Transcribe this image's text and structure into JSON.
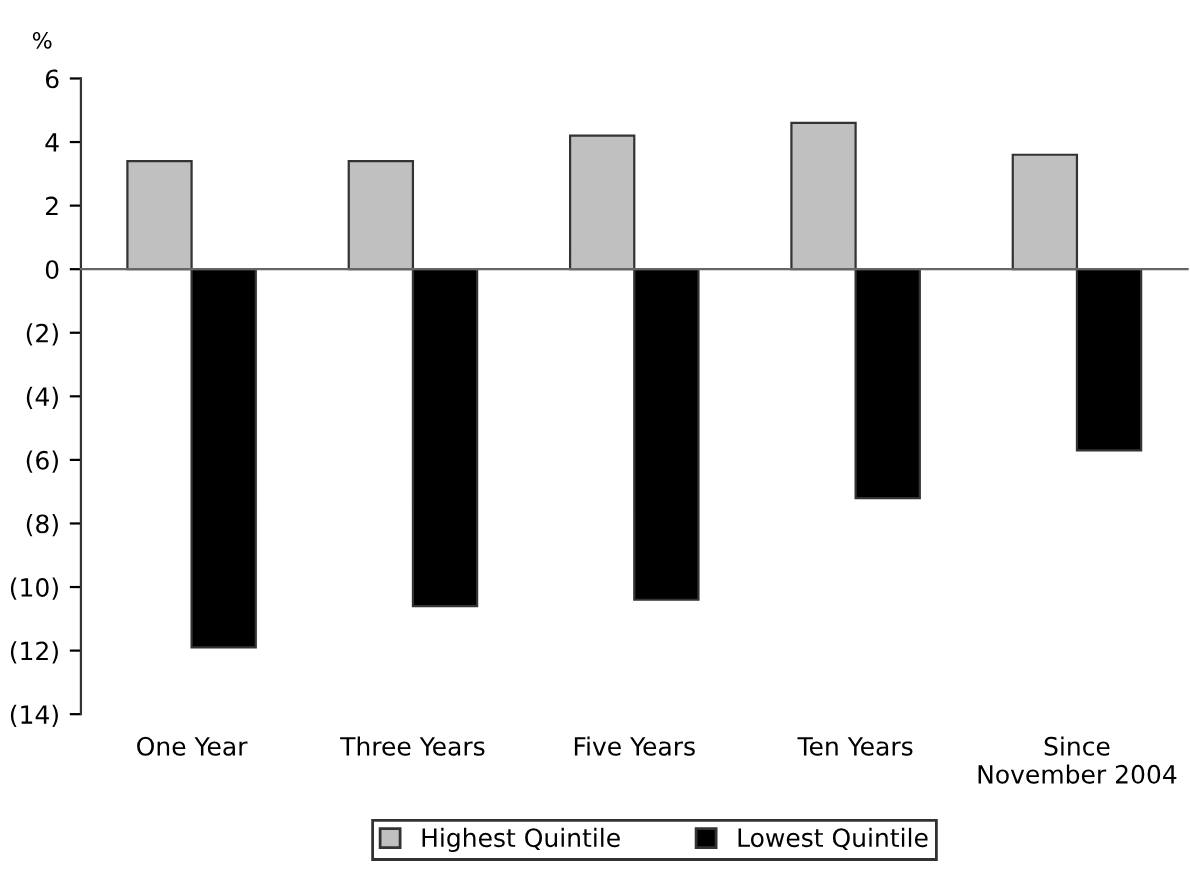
{
  "chart_data": {
    "type": "bar",
    "ylabel": "%",
    "categories": [
      "One Year",
      "Three Years",
      "Five Years",
      "Ten Years",
      "Since\nNovember 2004"
    ],
    "series": [
      {
        "name": "Highest Quintile",
        "color": "#c0c0c0",
        "values": [
          3.4,
          3.4,
          4.2,
          4.6,
          3.6
        ]
      },
      {
        "name": "Lowest Quintile",
        "color": "#000000",
        "values": [
          -11.9,
          -10.6,
          -10.4,
          -7.2,
          -5.7
        ]
      }
    ],
    "ylim": [
      -14,
      6
    ],
    "yticks": [
      {
        "value": -14,
        "label": "(14)"
      },
      {
        "value": -12,
        "label": "(12)"
      },
      {
        "value": -10,
        "label": "(10)"
      },
      {
        "value": -8,
        "label": "(8)"
      },
      {
        "value": -6,
        "label": "(6)"
      },
      {
        "value": -4,
        "label": "(4)"
      },
      {
        "value": -2,
        "label": "(2)"
      },
      0,
      2,
      4,
      6
    ],
    "legend": "bottom"
  }
}
